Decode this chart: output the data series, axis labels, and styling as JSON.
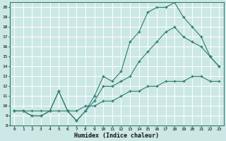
{
  "xlabel": "Humidex (Indice chaleur)",
  "xlim": [
    -0.5,
    23.5
  ],
  "ylim": [
    8,
    20.5
  ],
  "xticks": [
    0,
    1,
    2,
    3,
    4,
    5,
    6,
    7,
    8,
    9,
    10,
    11,
    12,
    13,
    14,
    15,
    16,
    17,
    18,
    19,
    20,
    21,
    22,
    23
  ],
  "yticks": [
    8,
    9,
    10,
    11,
    12,
    13,
    14,
    15,
    16,
    17,
    18,
    19,
    20
  ],
  "background_color": "#cce8e6",
  "grid_color": "#ffffff",
  "line_color": "#2e7d6e",
  "line1_x": [
    0,
    1,
    2,
    3,
    4,
    5,
    6,
    7,
    8,
    9,
    10,
    11,
    12,
    13,
    14,
    15,
    16,
    17,
    18,
    19,
    20,
    21,
    22,
    23
  ],
  "line1_y": [
    9.5,
    9.5,
    9.0,
    9.0,
    9.5,
    11.5,
    9.5,
    8.5,
    9.5,
    11.0,
    13.0,
    12.5,
    13.5,
    16.5,
    17.5,
    19.5,
    20.0,
    20.0,
    20.5,
    19.0,
    18.0,
    17.0,
    15.0,
    14.0
  ],
  "line2_x": [
    0,
    1,
    2,
    3,
    4,
    5,
    6,
    7,
    8,
    9,
    10,
    11,
    12,
    13,
    14,
    15,
    16,
    17,
    18,
    19,
    20,
    21,
    22,
    23
  ],
  "line2_y": [
    9.5,
    9.5,
    9.0,
    9.0,
    9.5,
    11.5,
    9.5,
    8.5,
    9.5,
    10.5,
    12.0,
    12.0,
    12.5,
    13.0,
    14.5,
    15.5,
    16.5,
    17.5,
    18.0,
    17.0,
    16.5,
    16.0,
    15.0,
    14.0
  ],
  "line3_x": [
    0,
    1,
    2,
    3,
    4,
    5,
    6,
    7,
    8,
    9,
    10,
    11,
    12,
    13,
    14,
    15,
    16,
    17,
    18,
    19,
    20,
    21,
    22,
    23
  ],
  "line3_y": [
    9.5,
    9.5,
    9.5,
    9.5,
    9.5,
    9.5,
    9.5,
    9.5,
    10.0,
    10.0,
    10.5,
    10.5,
    11.0,
    11.5,
    11.5,
    12.0,
    12.0,
    12.5,
    12.5,
    12.5,
    13.0,
    13.0,
    12.5,
    12.5
  ]
}
